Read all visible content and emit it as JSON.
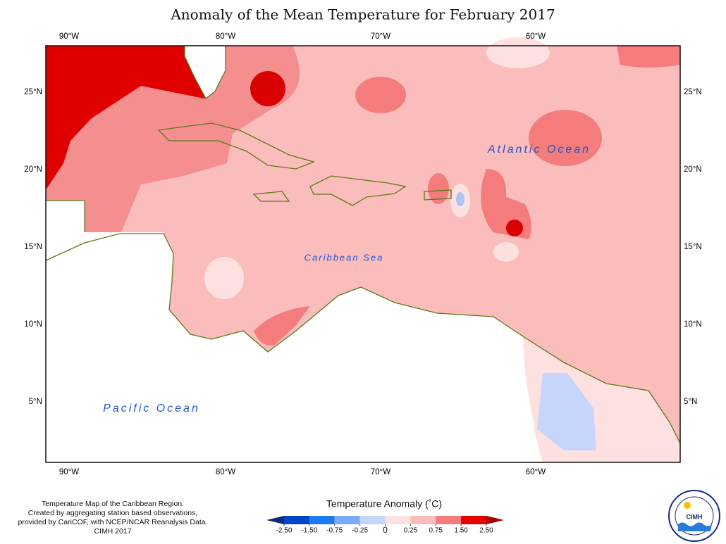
{
  "title": "Anomaly of the Mean Temperature for February 2017",
  "map": {
    "lon_labels": [
      "90°W",
      "80°W",
      "70°W",
      "60°W"
    ],
    "lat_labels": [
      "25°N",
      "20°N",
      "15°N",
      "10°N",
      "5°N"
    ],
    "labels": {
      "atlantic": "Atlantic Ocean",
      "caribbean": "Caribbean Sea",
      "pacific": "Pacific Ocean"
    }
  },
  "caption": [
    "Temperature Map of the Caribbean Region.",
    "Created by aggregating station based observations,",
    "provided by CariCOF, with NCEP/NCAR Reanalysis Data.",
    "CIMH 2017"
  ],
  "legend": {
    "title": "Temperature Anomaly (˚C)",
    "ticks": [
      {
        "value": -2.5,
        "label": "-2.50"
      },
      {
        "value": -1.5,
        "label": "-1.50"
      },
      {
        "value": -0.75,
        "label": "-0.75"
      },
      {
        "value": -0.25,
        "label": "-0.25"
      },
      0,
      {
        "value": 0.25,
        "label": "0.25"
      },
      {
        "value": 0.75,
        "label": "0.75"
      },
      {
        "value": 1.5,
        "label": "1.50"
      },
      {
        "value": 2.5,
        "label": "2.50"
      }
    ],
    "colors": [
      "#0a2a7a",
      "#0044c8",
      "#1a7af0",
      "#7aaaf5",
      "#c5d6fa",
      "#fde0e0",
      "#fbbcbc",
      "#f47c7c",
      "#e60000",
      "#a80000"
    ]
  },
  "logo": {
    "text": "CIMH"
  }
}
